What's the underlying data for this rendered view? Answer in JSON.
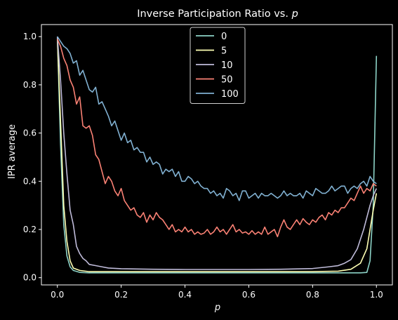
{
  "chart_data": {
    "type": "line",
    "title_prefix": "Inverse Participation Ratio vs. ",
    "title_var": "p",
    "xlabel": "p",
    "ylabel": "IPR average",
    "xlim": [
      -0.05,
      1.05
    ],
    "ylim": [
      -0.03,
      1.05
    ],
    "xticks": [
      0.0,
      0.2,
      0.4,
      0.6,
      0.8,
      1.0
    ],
    "xtick_labels": [
      "0.0",
      "0.2",
      "0.4",
      "0.6",
      "0.8",
      "1.0"
    ],
    "yticks": [
      0.0,
      0.2,
      0.4,
      0.6,
      0.8,
      1.0
    ],
    "ytick_labels": [
      "0.0",
      "0.2",
      "0.4",
      "0.6",
      "0.8",
      "1.0"
    ],
    "legend_position": "top-center",
    "grid": false,
    "series": [
      {
        "name": "0",
        "color": "#8dd3c7",
        "points": [
          [
            0.0,
            1.0
          ],
          [
            0.01,
            0.55
          ],
          [
            0.02,
            0.22
          ],
          [
            0.03,
            0.09
          ],
          [
            0.04,
            0.045
          ],
          [
            0.05,
            0.03
          ],
          [
            0.07,
            0.022
          ],
          [
            0.1,
            0.02
          ],
          [
            0.2,
            0.02
          ],
          [
            0.4,
            0.02
          ],
          [
            0.6,
            0.02
          ],
          [
            0.8,
            0.02
          ],
          [
            0.9,
            0.02
          ],
          [
            0.95,
            0.02
          ],
          [
            0.97,
            0.022
          ],
          [
            0.98,
            0.07
          ],
          [
            0.99,
            0.3
          ],
          [
            1.0,
            0.92
          ]
        ]
      },
      {
        "name": "5",
        "color": "#feffb3",
        "points": [
          [
            0.0,
            0.99
          ],
          [
            0.01,
            0.65
          ],
          [
            0.02,
            0.3
          ],
          [
            0.03,
            0.15
          ],
          [
            0.04,
            0.07
          ],
          [
            0.05,
            0.04
          ],
          [
            0.07,
            0.03
          ],
          [
            0.1,
            0.025
          ],
          [
            0.2,
            0.025
          ],
          [
            0.4,
            0.025
          ],
          [
            0.6,
            0.025
          ],
          [
            0.8,
            0.025
          ],
          [
            0.88,
            0.027
          ],
          [
            0.92,
            0.035
          ],
          [
            0.95,
            0.06
          ],
          [
            0.97,
            0.12
          ],
          [
            0.98,
            0.2
          ],
          [
            0.99,
            0.28
          ],
          [
            1.0,
            0.35
          ]
        ]
      },
      {
        "name": "10",
        "color": "#bfbbd9",
        "points": [
          [
            0.0,
            1.0
          ],
          [
            0.01,
            0.82
          ],
          [
            0.02,
            0.6
          ],
          [
            0.03,
            0.43
          ],
          [
            0.04,
            0.28
          ],
          [
            0.05,
            0.22
          ],
          [
            0.06,
            0.13
          ],
          [
            0.07,
            0.1
          ],
          [
            0.08,
            0.08
          ],
          [
            0.09,
            0.07
          ],
          [
            0.1,
            0.055
          ],
          [
            0.12,
            0.05
          ],
          [
            0.14,
            0.045
          ],
          [
            0.16,
            0.04
          ],
          [
            0.2,
            0.037
          ],
          [
            0.3,
            0.035
          ],
          [
            0.4,
            0.034
          ],
          [
            0.5,
            0.034
          ],
          [
            0.6,
            0.034
          ],
          [
            0.7,
            0.035
          ],
          [
            0.8,
            0.038
          ],
          [
            0.85,
            0.045
          ],
          [
            0.88,
            0.05
          ],
          [
            0.9,
            0.06
          ],
          [
            0.92,
            0.075
          ],
          [
            0.94,
            0.12
          ],
          [
            0.96,
            0.2
          ],
          [
            0.97,
            0.25
          ],
          [
            0.98,
            0.3
          ],
          [
            0.99,
            0.34
          ],
          [
            1.0,
            0.37
          ]
        ]
      },
      {
        "name": "50",
        "color": "#fa8174",
        "points": [
          [
            0.0,
            0.99
          ],
          [
            0.01,
            0.96
          ],
          [
            0.02,
            0.91
          ],
          [
            0.03,
            0.88
          ],
          [
            0.04,
            0.82
          ],
          [
            0.05,
            0.79
          ],
          [
            0.06,
            0.72
          ],
          [
            0.07,
            0.75
          ],
          [
            0.08,
            0.63
          ],
          [
            0.09,
            0.62
          ],
          [
            0.1,
            0.63
          ],
          [
            0.11,
            0.59
          ],
          [
            0.12,
            0.51
          ],
          [
            0.13,
            0.49
          ],
          [
            0.14,
            0.44
          ],
          [
            0.15,
            0.39
          ],
          [
            0.16,
            0.42
          ],
          [
            0.17,
            0.4
          ],
          [
            0.18,
            0.36
          ],
          [
            0.19,
            0.34
          ],
          [
            0.2,
            0.37
          ],
          [
            0.21,
            0.32
          ],
          [
            0.22,
            0.3
          ],
          [
            0.23,
            0.28
          ],
          [
            0.24,
            0.29
          ],
          [
            0.25,
            0.26
          ],
          [
            0.26,
            0.25
          ],
          [
            0.27,
            0.27
          ],
          [
            0.28,
            0.23
          ],
          [
            0.29,
            0.26
          ],
          [
            0.3,
            0.24
          ],
          [
            0.31,
            0.27
          ],
          [
            0.32,
            0.25
          ],
          [
            0.33,
            0.24
          ],
          [
            0.34,
            0.22
          ],
          [
            0.35,
            0.2
          ],
          [
            0.36,
            0.22
          ],
          [
            0.37,
            0.19
          ],
          [
            0.38,
            0.2
          ],
          [
            0.39,
            0.19
          ],
          [
            0.4,
            0.21
          ],
          [
            0.41,
            0.19
          ],
          [
            0.42,
            0.2
          ],
          [
            0.43,
            0.18
          ],
          [
            0.44,
            0.19
          ],
          [
            0.45,
            0.18
          ],
          [
            0.46,
            0.185
          ],
          [
            0.47,
            0.2
          ],
          [
            0.48,
            0.18
          ],
          [
            0.49,
            0.19
          ],
          [
            0.5,
            0.21
          ],
          [
            0.51,
            0.19
          ],
          [
            0.52,
            0.2
          ],
          [
            0.53,
            0.18
          ],
          [
            0.54,
            0.2
          ],
          [
            0.55,
            0.22
          ],
          [
            0.56,
            0.19
          ],
          [
            0.57,
            0.2
          ],
          [
            0.58,
            0.185
          ],
          [
            0.59,
            0.19
          ],
          [
            0.6,
            0.18
          ],
          [
            0.61,
            0.195
          ],
          [
            0.62,
            0.18
          ],
          [
            0.63,
            0.19
          ],
          [
            0.64,
            0.18
          ],
          [
            0.65,
            0.21
          ],
          [
            0.66,
            0.18
          ],
          [
            0.67,
            0.19
          ],
          [
            0.68,
            0.2
          ],
          [
            0.69,
            0.17
          ],
          [
            0.7,
            0.21
          ],
          [
            0.71,
            0.24
          ],
          [
            0.72,
            0.21
          ],
          [
            0.73,
            0.2
          ],
          [
            0.74,
            0.22
          ],
          [
            0.75,
            0.24
          ],
          [
            0.76,
            0.22
          ],
          [
            0.77,
            0.245
          ],
          [
            0.78,
            0.23
          ],
          [
            0.79,
            0.22
          ],
          [
            0.8,
            0.24
          ],
          [
            0.81,
            0.23
          ],
          [
            0.82,
            0.25
          ],
          [
            0.83,
            0.26
          ],
          [
            0.84,
            0.24
          ],
          [
            0.85,
            0.27
          ],
          [
            0.86,
            0.26
          ],
          [
            0.87,
            0.28
          ],
          [
            0.88,
            0.27
          ],
          [
            0.89,
            0.29
          ],
          [
            0.9,
            0.29
          ],
          [
            0.91,
            0.31
          ],
          [
            0.92,
            0.33
          ],
          [
            0.93,
            0.32
          ],
          [
            0.94,
            0.35
          ],
          [
            0.95,
            0.38
          ],
          [
            0.96,
            0.35
          ],
          [
            0.97,
            0.37
          ],
          [
            0.98,
            0.36
          ],
          [
            0.99,
            0.39
          ],
          [
            1.0,
            0.38
          ]
        ]
      },
      {
        "name": "100",
        "color": "#81b1d2",
        "points": [
          [
            0.0,
            1.0
          ],
          [
            0.01,
            0.98
          ],
          [
            0.02,
            0.96
          ],
          [
            0.03,
            0.95
          ],
          [
            0.04,
            0.93
          ],
          [
            0.05,
            0.89
          ],
          [
            0.06,
            0.9
          ],
          [
            0.07,
            0.84
          ],
          [
            0.08,
            0.86
          ],
          [
            0.09,
            0.82
          ],
          [
            0.1,
            0.78
          ],
          [
            0.11,
            0.77
          ],
          [
            0.12,
            0.79
          ],
          [
            0.13,
            0.72
          ],
          [
            0.14,
            0.73
          ],
          [
            0.15,
            0.7
          ],
          [
            0.16,
            0.67
          ],
          [
            0.17,
            0.63
          ],
          [
            0.18,
            0.65
          ],
          [
            0.19,
            0.61
          ],
          [
            0.2,
            0.57
          ],
          [
            0.21,
            0.6
          ],
          [
            0.22,
            0.56
          ],
          [
            0.23,
            0.57
          ],
          [
            0.24,
            0.53
          ],
          [
            0.25,
            0.54
          ],
          [
            0.26,
            0.52
          ],
          [
            0.27,
            0.52
          ],
          [
            0.28,
            0.48
          ],
          [
            0.29,
            0.5
          ],
          [
            0.3,
            0.47
          ],
          [
            0.31,
            0.48
          ],
          [
            0.32,
            0.47
          ],
          [
            0.33,
            0.43
          ],
          [
            0.34,
            0.45
          ],
          [
            0.35,
            0.44
          ],
          [
            0.36,
            0.45
          ],
          [
            0.37,
            0.42
          ],
          [
            0.38,
            0.44
          ],
          [
            0.39,
            0.4
          ],
          [
            0.4,
            0.4
          ],
          [
            0.41,
            0.42
          ],
          [
            0.42,
            0.41
          ],
          [
            0.43,
            0.39
          ],
          [
            0.44,
            0.4
          ],
          [
            0.45,
            0.38
          ],
          [
            0.46,
            0.37
          ],
          [
            0.47,
            0.37
          ],
          [
            0.48,
            0.35
          ],
          [
            0.49,
            0.36
          ],
          [
            0.5,
            0.34
          ],
          [
            0.51,
            0.35
          ],
          [
            0.52,
            0.33
          ],
          [
            0.53,
            0.37
          ],
          [
            0.54,
            0.36
          ],
          [
            0.55,
            0.34
          ],
          [
            0.56,
            0.35
          ],
          [
            0.57,
            0.32
          ],
          [
            0.58,
            0.36
          ],
          [
            0.59,
            0.36
          ],
          [
            0.6,
            0.33
          ],
          [
            0.61,
            0.34
          ],
          [
            0.62,
            0.35
          ],
          [
            0.63,
            0.33
          ],
          [
            0.64,
            0.35
          ],
          [
            0.65,
            0.34
          ],
          [
            0.66,
            0.34
          ],
          [
            0.67,
            0.35
          ],
          [
            0.68,
            0.34
          ],
          [
            0.69,
            0.33
          ],
          [
            0.7,
            0.34
          ],
          [
            0.71,
            0.36
          ],
          [
            0.72,
            0.34
          ],
          [
            0.73,
            0.35
          ],
          [
            0.74,
            0.34
          ],
          [
            0.75,
            0.34
          ],
          [
            0.76,
            0.35
          ],
          [
            0.77,
            0.33
          ],
          [
            0.78,
            0.36
          ],
          [
            0.79,
            0.35
          ],
          [
            0.8,
            0.34
          ],
          [
            0.81,
            0.37
          ],
          [
            0.82,
            0.36
          ],
          [
            0.83,
            0.35
          ],
          [
            0.84,
            0.35
          ],
          [
            0.85,
            0.36
          ],
          [
            0.86,
            0.38
          ],
          [
            0.87,
            0.36
          ],
          [
            0.88,
            0.37
          ],
          [
            0.89,
            0.38
          ],
          [
            0.9,
            0.38
          ],
          [
            0.91,
            0.35
          ],
          [
            0.92,
            0.37
          ],
          [
            0.93,
            0.38
          ],
          [
            0.94,
            0.37
          ],
          [
            0.95,
            0.39
          ],
          [
            0.96,
            0.4
          ],
          [
            0.97,
            0.38
          ],
          [
            0.98,
            0.42
          ],
          [
            0.99,
            0.4
          ],
          [
            1.0,
            0.39
          ]
        ]
      }
    ]
  }
}
